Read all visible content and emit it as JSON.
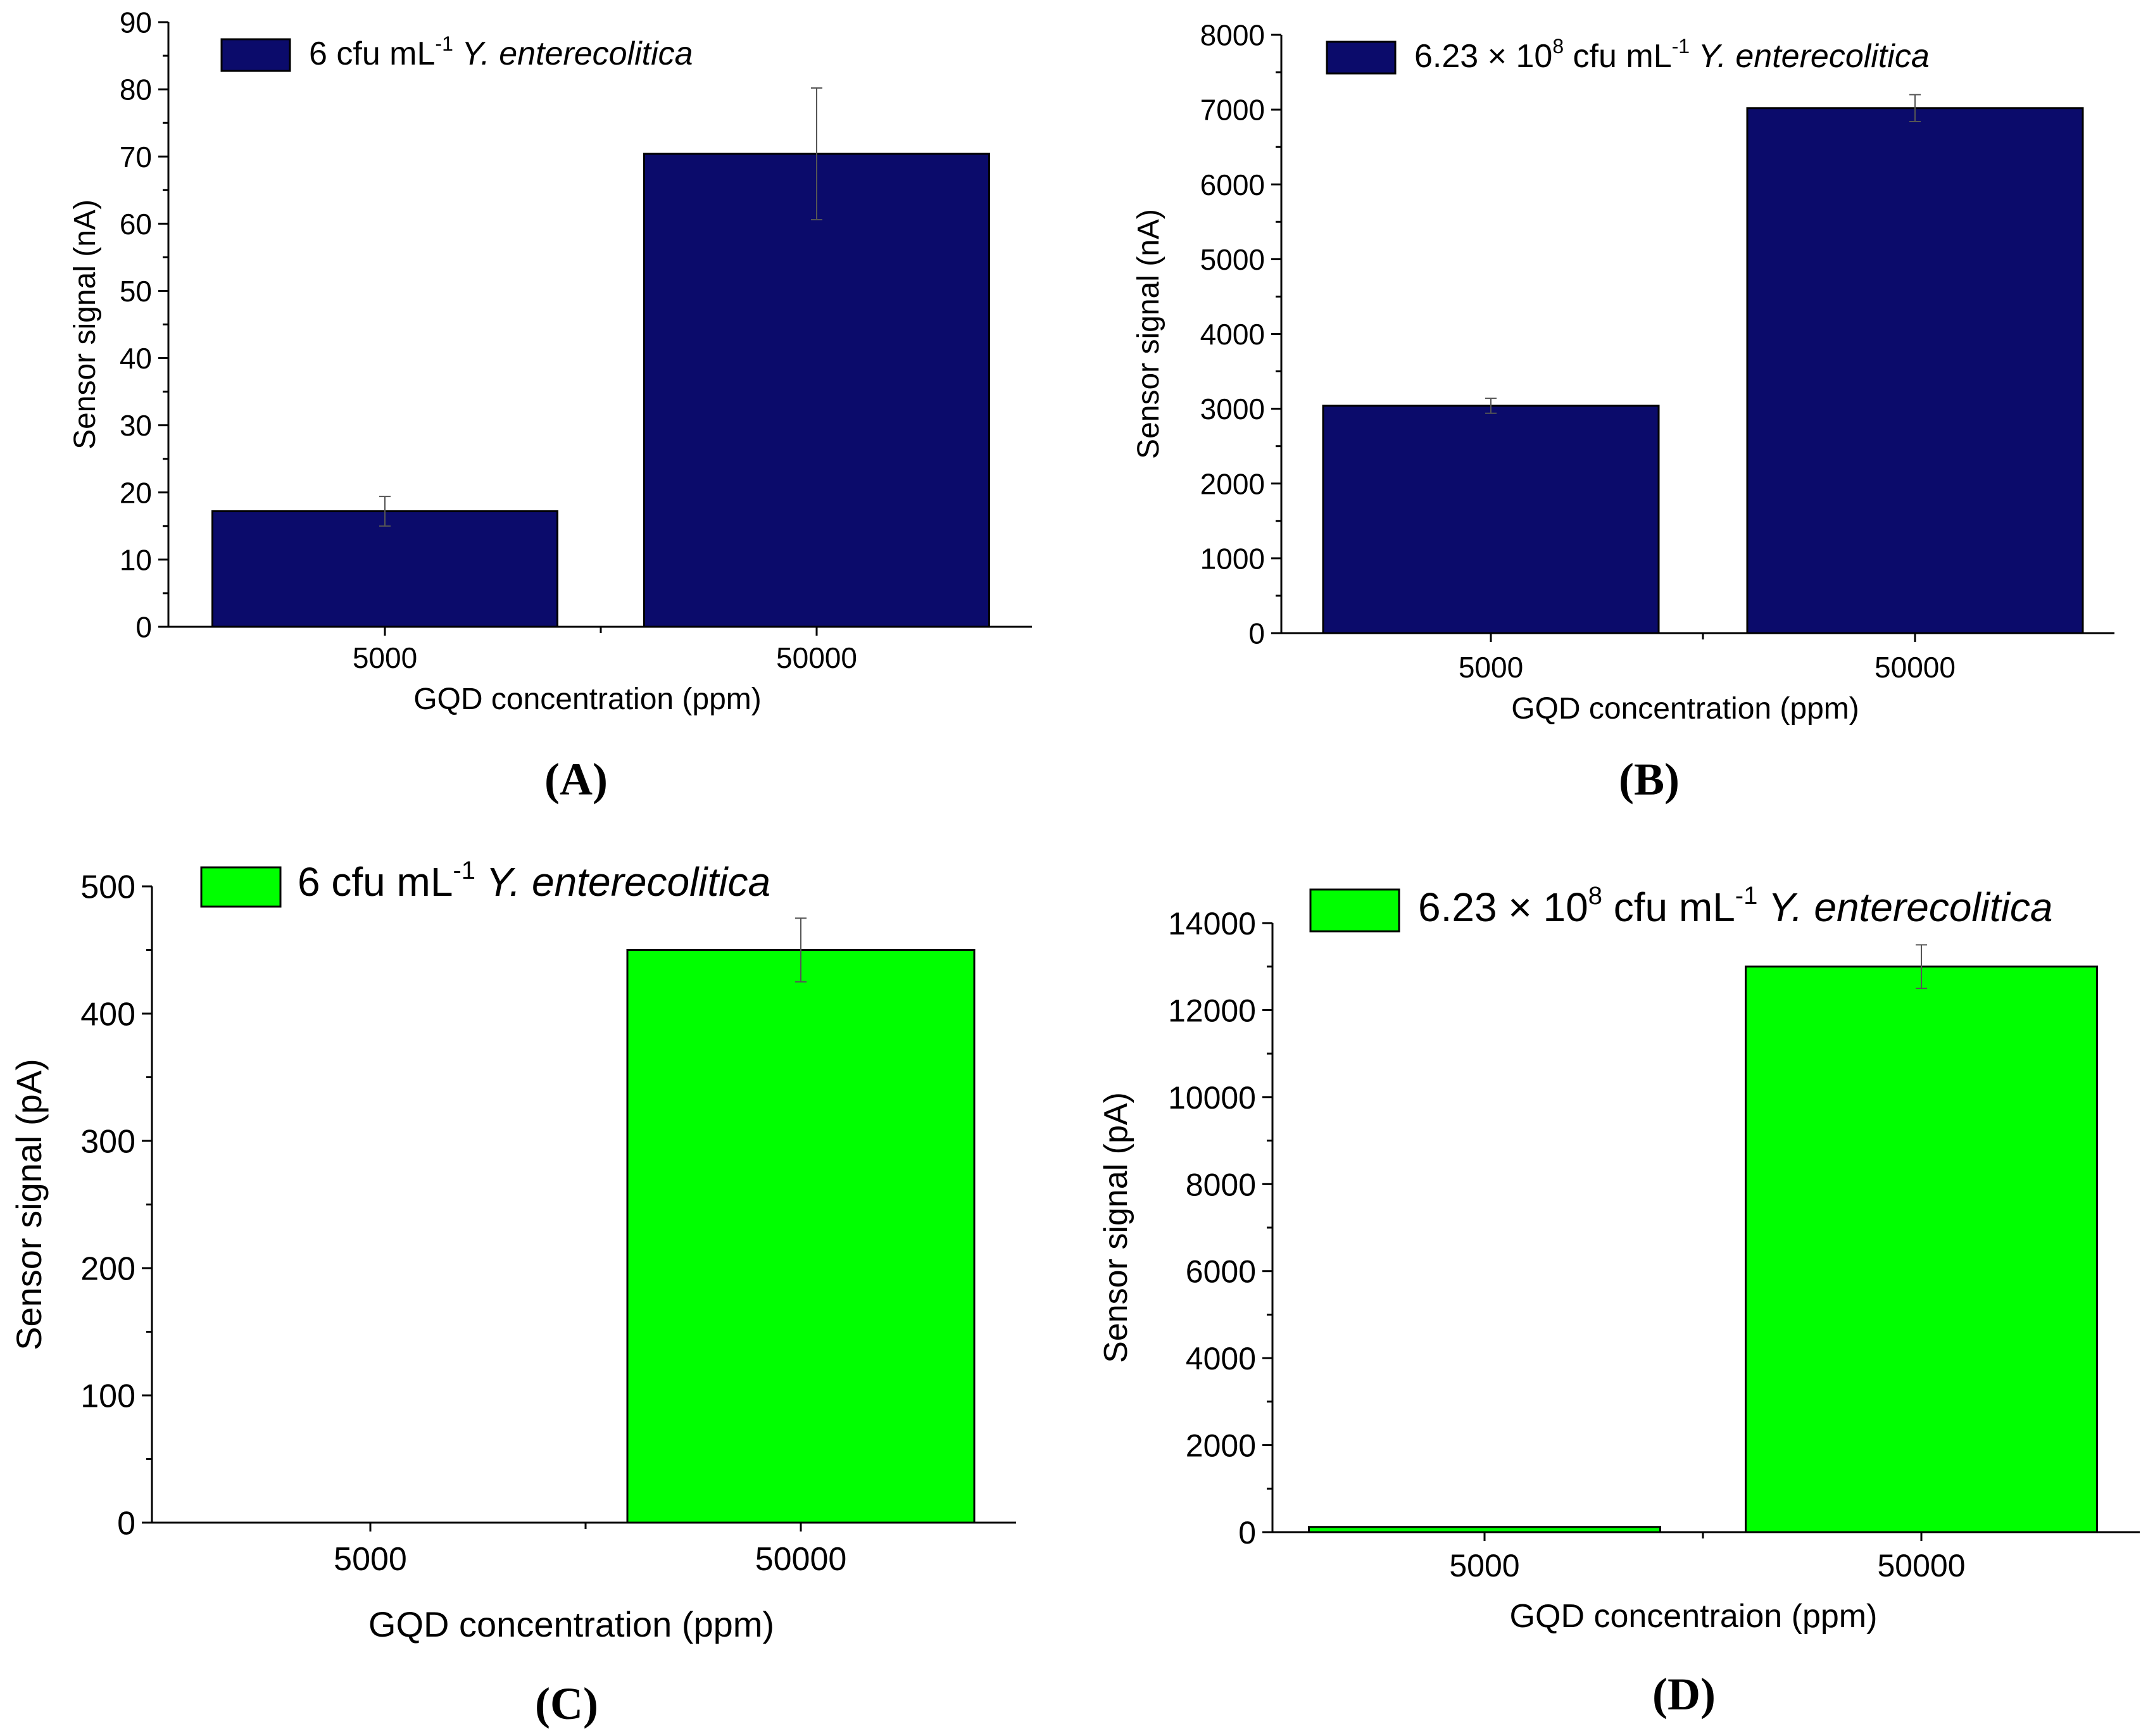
{
  "chart_data": [
    {
      "id": "A",
      "type": "bar",
      "panel_label": "(A)",
      "categories": [
        "5000",
        "50000"
      ],
      "series": [
        {
          "name": "6 cfu mL-1 Y. enterecolitica",
          "values": [
            17.2,
            70.4
          ],
          "errors": [
            2.2,
            9.8
          ]
        }
      ],
      "legend": {
        "parts": [
          "6 cfu mL",
          "-1",
          "Y. enterecolitica"
        ]
      },
      "xlabel": "GQD concentration (ppm)",
      "ylabel": "Sensor signal (nA)",
      "ylim": [
        0,
        90
      ],
      "yticks": [
        0,
        10,
        20,
        30,
        40,
        50,
        60,
        70,
        80,
        90
      ],
      "ytick_labels": [
        "0",
        "10",
        "20",
        "30",
        "40",
        "50",
        "60",
        "70",
        "80",
        "90"
      ],
      "bar_color": "#0b0b6b"
    },
    {
      "id": "B",
      "type": "bar",
      "panel_label": "(B)",
      "categories": [
        "5000",
        "50000"
      ],
      "series": [
        {
          "name": "6.23 × 10^8 cfu mL-1 Y. enterecolitica",
          "values": [
            3040,
            7020
          ],
          "errors": [
            100,
            180
          ]
        }
      ],
      "legend": {
        "parts": [
          "6.23 × 10",
          "8",
          "cfu mL",
          "-1",
          "Y. enterecolitica"
        ]
      },
      "xlabel": "GQD concentration (ppm)",
      "ylabel": "Sensor signal (nA)",
      "ylim": [
        0,
        8000
      ],
      "yticks": [
        0,
        1000,
        2000,
        3000,
        4000,
        5000,
        6000,
        7000,
        8000
      ],
      "ytick_labels": [
        "0",
        "1000",
        "2000",
        "3000",
        "4000",
        "5000",
        "6000",
        "7000",
        "8000"
      ],
      "bar_color": "#0b0b6b"
    },
    {
      "id": "C",
      "type": "bar",
      "panel_label": "(C)",
      "categories": [
        "5000",
        "50000"
      ],
      "series": [
        {
          "name": "6 cfu mL-1 Y. enterecolitica",
          "values": [
            0,
            450
          ],
          "errors": [
            0,
            25
          ]
        }
      ],
      "legend": {
        "parts": [
          "6 cfu mL",
          "-1",
          "Y. enterecolitica"
        ]
      },
      "xlabel": "GQD concentration (ppm)",
      "ylabel": "Sensor signal (pA)",
      "ylim": [
        0,
        500
      ],
      "yticks": [
        0,
        100,
        200,
        300,
        400,
        500
      ],
      "ytick_labels": [
        "0",
        "100",
        "200",
        "300",
        "400",
        "500"
      ],
      "bar_color": "#00ff00"
    },
    {
      "id": "D",
      "type": "bar",
      "panel_label": "(D)",
      "categories": [
        "5000",
        "50000"
      ],
      "series": [
        {
          "name": "6.23 × 10^8 cfu mL-1 Y. enterecolitica",
          "values": [
            120,
            13000
          ],
          "errors": [
            0,
            500
          ]
        }
      ],
      "legend": {
        "parts": [
          "6.23 × 10",
          "8",
          "cfu mL",
          "-1",
          "Y. enterecolitica"
        ]
      },
      "xlabel": "GQD concentraion (ppm)",
      "ylabel": "Sensor signal (pA)",
      "ylim": [
        0,
        14000
      ],
      "yticks": [
        0,
        2000,
        4000,
        6000,
        8000,
        10000,
        12000,
        14000
      ],
      "ytick_labels": [
        "0",
        "2000",
        "4000",
        "6000",
        "8000",
        "10000",
        "12000",
        "14000"
      ],
      "bar_color": "#00ff00"
    }
  ]
}
